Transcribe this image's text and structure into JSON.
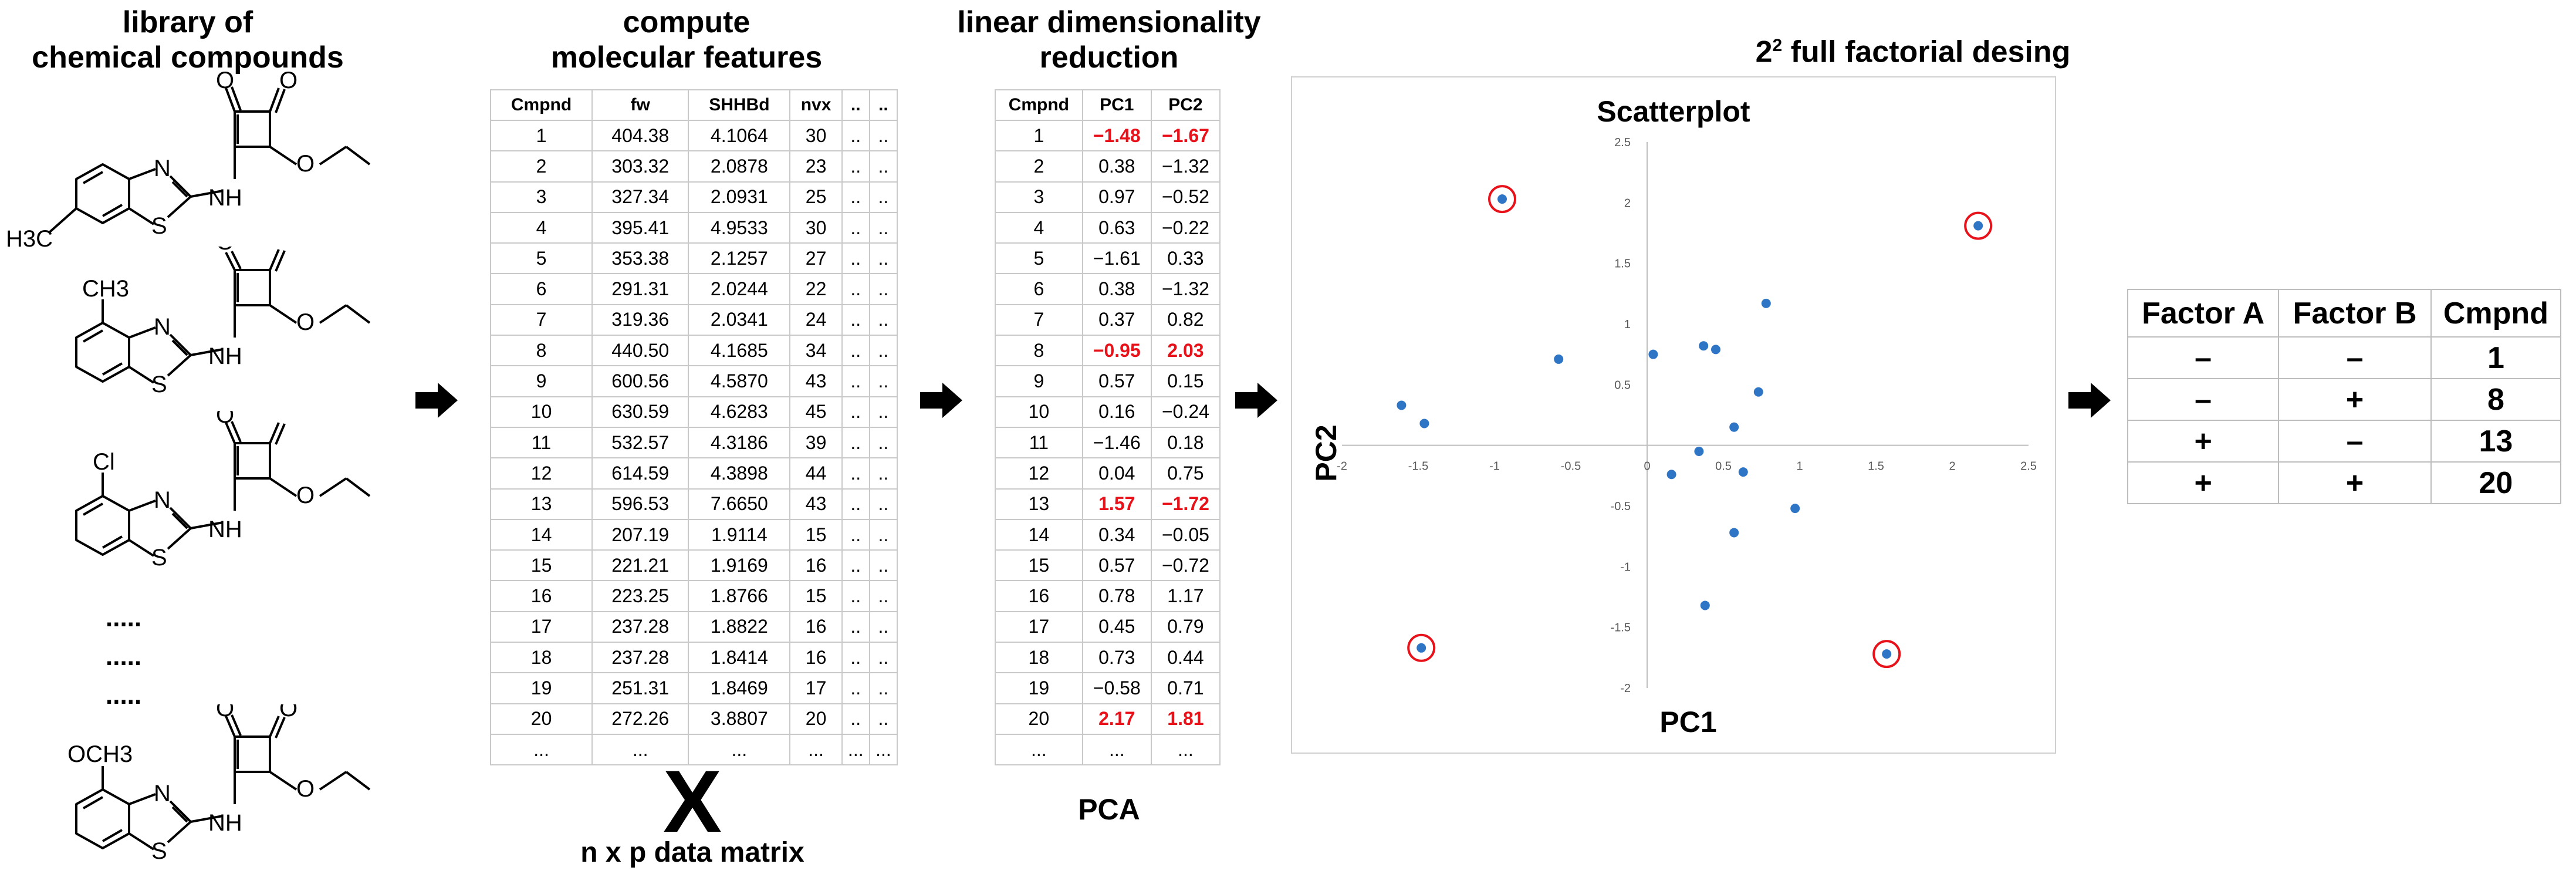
{
  "library": {
    "heading_line1": "library of",
    "heading_line2": "chemical compounds",
    "molecules": [
      {
        "substituent": "H3C",
        "position": "6"
      },
      {
        "substituent": "CH3",
        "position": "4"
      },
      {
        "substituent": "Cl",
        "position": "4"
      },
      {
        "substituent": "OCH3",
        "position": "4"
      }
    ],
    "ellipsis": [
      ".....",
      ".....",
      "....."
    ],
    "atom_labels": {
      "N": "N",
      "S": "S",
      "NH": "NH",
      "O": "O"
    }
  },
  "features": {
    "heading_line1": "compute",
    "heading_line2": "molecular features",
    "columns": [
      "Cmpnd",
      "fw",
      "SHHBd",
      "nvx",
      "..",
      ".."
    ],
    "rows": [
      [
        "1",
        "404.38",
        "4.1064",
        "30",
        "..",
        ".."
      ],
      [
        "2",
        "303.32",
        "2.0878",
        "23",
        "..",
        ".."
      ],
      [
        "3",
        "327.34",
        "2.0931",
        "25",
        "..",
        ".."
      ],
      [
        "4",
        "395.41",
        "4.9533",
        "30",
        "..",
        ".."
      ],
      [
        "5",
        "353.38",
        "2.1257",
        "27",
        "..",
        ".."
      ],
      [
        "6",
        "291.31",
        "2.0244",
        "22",
        "..",
        ".."
      ],
      [
        "7",
        "319.36",
        "2.0341",
        "24",
        "..",
        ".."
      ],
      [
        "8",
        "440.50",
        "4.1685",
        "34",
        "..",
        ".."
      ],
      [
        "9",
        "600.56",
        "4.5870",
        "43",
        "..",
        ".."
      ],
      [
        "10",
        "630.59",
        "4.6283",
        "45",
        "..",
        ".."
      ],
      [
        "11",
        "532.57",
        "4.3186",
        "39",
        "..",
        ".."
      ],
      [
        "12",
        "614.59",
        "4.3898",
        "44",
        "..",
        ".."
      ],
      [
        "13",
        "596.53",
        "7.6650",
        "43",
        "..",
        ".."
      ],
      [
        "14",
        "207.19",
        "1.9114",
        "15",
        "..",
        ".."
      ],
      [
        "15",
        "221.21",
        "1.9169",
        "16",
        "..",
        ".."
      ],
      [
        "16",
        "223.25",
        "1.8766",
        "15",
        "..",
        ".."
      ],
      [
        "17",
        "237.28",
        "1.8822",
        "16",
        "..",
        ".."
      ],
      [
        "18",
        "237.28",
        "1.8414",
        "16",
        "..",
        ".."
      ],
      [
        "19",
        "251.31",
        "1.8469",
        "17",
        "..",
        ".."
      ],
      [
        "20",
        "272.26",
        "3.8807",
        "20",
        "..",
        ".."
      ],
      [
        "...",
        "...",
        "...",
        "...",
        "...",
        "..."
      ]
    ],
    "matrix_symbol": "X",
    "matrix_caption": "n x p data matrix"
  },
  "pca": {
    "heading_line1": "linear dimensionality",
    "heading_line2": "reduction",
    "columns": [
      "Cmpnd",
      "PC1",
      "PC2"
    ],
    "rows": [
      [
        "1",
        "−1.48",
        "−1.67"
      ],
      [
        "2",
        "0.38",
        "−1.32"
      ],
      [
        "3",
        "0.97",
        "−0.52"
      ],
      [
        "4",
        "0.63",
        "−0.22"
      ],
      [
        "5",
        "−1.61",
        "0.33"
      ],
      [
        "6",
        "0.38",
        "−1.32"
      ],
      [
        "7",
        "0.37",
        "0.82"
      ],
      [
        "8",
        "−0.95",
        "2.03"
      ],
      [
        "9",
        "0.57",
        "0.15"
      ],
      [
        "10",
        "0.16",
        "−0.24"
      ],
      [
        "11",
        "−1.46",
        "0.18"
      ],
      [
        "12",
        "0.04",
        "0.75"
      ],
      [
        "13",
        "1.57",
        "−1.72"
      ],
      [
        "14",
        "0.34",
        "−0.05"
      ],
      [
        "15",
        "0.57",
        "−0.72"
      ],
      [
        "16",
        "0.78",
        "1.17"
      ],
      [
        "17",
        "0.45",
        "0.79"
      ],
      [
        "18",
        "0.73",
        "0.44"
      ],
      [
        "19",
        "−0.58",
        "0.71"
      ],
      [
        "20",
        "2.17",
        "1.81"
      ],
      [
        "...",
        "...",
        "..."
      ]
    ],
    "highlight_rows": [
      0,
      7,
      12,
      19
    ],
    "caption": "PCA"
  },
  "chart_data": {
    "type": "scatter",
    "title": "Scatterplot",
    "xlabel": "PC1",
    "ylabel": "PC2",
    "xlim": [
      -2,
      2.5
    ],
    "ylim": [
      -2,
      2.5
    ],
    "xticks": [
      -2,
      -1.5,
      -1,
      -0.5,
      0,
      0.5,
      1,
      1.5,
      2,
      2.5
    ],
    "yticks": [
      -2,
      -1.5,
      -1,
      -0.5,
      0,
      0.5,
      1,
      1.5,
      2,
      2.5
    ],
    "xtick_labels": [
      "-2",
      "-1.5",
      "-1",
      "-0.5",
      "0",
      "0.5",
      "1",
      "1.5",
      "2",
      "2.5"
    ],
    "ytick_labels": [
      "-2",
      "-1.5",
      "-1",
      "-0.5",
      "0",
      "0.5",
      "1",
      "1.5",
      "2",
      "2.5"
    ],
    "points": [
      {
        "x": -1.48,
        "y": -1.67,
        "circled": true
      },
      {
        "x": 0.38,
        "y": -1.32,
        "circled": false
      },
      {
        "x": 0.97,
        "y": -0.52,
        "circled": false
      },
      {
        "x": 0.63,
        "y": -0.22,
        "circled": false
      },
      {
        "x": -1.61,
        "y": 0.33,
        "circled": false
      },
      {
        "x": 0.37,
        "y": 0.82,
        "circled": false
      },
      {
        "x": -0.95,
        "y": 2.03,
        "circled": true
      },
      {
        "x": 0.57,
        "y": 0.15,
        "circled": false
      },
      {
        "x": 0.16,
        "y": -0.24,
        "circled": false
      },
      {
        "x": -1.46,
        "y": 0.18,
        "circled": false
      },
      {
        "x": 0.04,
        "y": 0.75,
        "circled": false
      },
      {
        "x": 1.57,
        "y": -1.72,
        "circled": true
      },
      {
        "x": 0.34,
        "y": -0.05,
        "circled": false
      },
      {
        "x": 0.57,
        "y": -0.72,
        "circled": false
      },
      {
        "x": 0.78,
        "y": 1.17,
        "circled": false
      },
      {
        "x": 0.45,
        "y": 0.79,
        "circled": false
      },
      {
        "x": 0.73,
        "y": 0.44,
        "circled": false
      },
      {
        "x": -0.58,
        "y": 0.71,
        "circled": false
      },
      {
        "x": 2.17,
        "y": 1.81,
        "circled": true
      }
    ],
    "point_color": "#2e75c6",
    "highlight_color": "#e8121a"
  },
  "factorial": {
    "heading_main": "2",
    "heading_sup": "2",
    "heading_rest": " full factorial desing",
    "columns": [
      "Factor A",
      "Factor B",
      "Cmpnd"
    ],
    "rows": [
      [
        "–",
        "–",
        "1"
      ],
      [
        "–",
        "+",
        "8"
      ],
      [
        "+",
        "–",
        "13"
      ],
      [
        "+",
        "+",
        "20"
      ]
    ]
  }
}
